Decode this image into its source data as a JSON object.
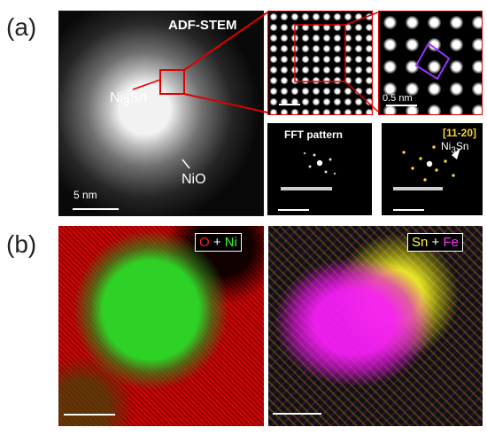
{
  "panel_a": {
    "letter": "(a)",
    "main_title": "ADF-STEM",
    "label_nisn_base": "Ni",
    "label_nisn_sub": "3",
    "label_nisn_end": "Sn",
    "label_nio": "NiO",
    "scale_main": "5 nm",
    "scale_zoom": "0.5 nm",
    "fft_title": "FFT pattern",
    "zone_axis": "[11-20]",
    "fft2_label_base": "Ni",
    "fft2_label_sub": "3",
    "fft2_label_end": "Sn"
  },
  "panel_b": {
    "letter": "(b)",
    "left_label": {
      "first": "O",
      "plus": " + ",
      "second": "Ni"
    },
    "right_label": {
      "first": "Sn",
      "plus": " + ",
      "second": "Fe"
    }
  },
  "colors": {
    "red_box": "#dd0000",
    "purple_box": "#9a33ff",
    "zone_yellow": "#f6d233",
    "map_red": "#ff1e1e",
    "map_green": "#33ff33",
    "map_yellow": "#ffff33",
    "map_magenta": "#ff33ff"
  }
}
